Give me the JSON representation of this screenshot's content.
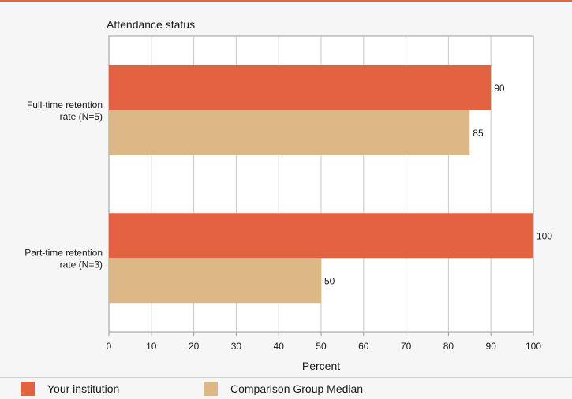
{
  "chart_data": {
    "type": "bar",
    "orientation": "horizontal",
    "title": "Attendance status",
    "categories": [
      "Full-time retention rate (N=5)",
      "Part-time retention rate (N=3)"
    ],
    "category_lines": [
      [
        "Full-time retention",
        "rate (N=5)"
      ],
      [
        "Part-time retention",
        "rate (N=3)"
      ]
    ],
    "series": [
      {
        "name": "Your institution",
        "values": [
          90,
          100
        ],
        "color": "#e36241"
      },
      {
        "name": "Comparison Group Median",
        "values": [
          85,
          50
        ],
        "color": "#ddb887"
      }
    ],
    "xlabel": "Percent",
    "xlim": [
      0,
      100
    ],
    "xticks": [
      0,
      10,
      20,
      30,
      40,
      50,
      60,
      70,
      80,
      90,
      100
    ],
    "grid": true,
    "legend_position": "bottom"
  }
}
